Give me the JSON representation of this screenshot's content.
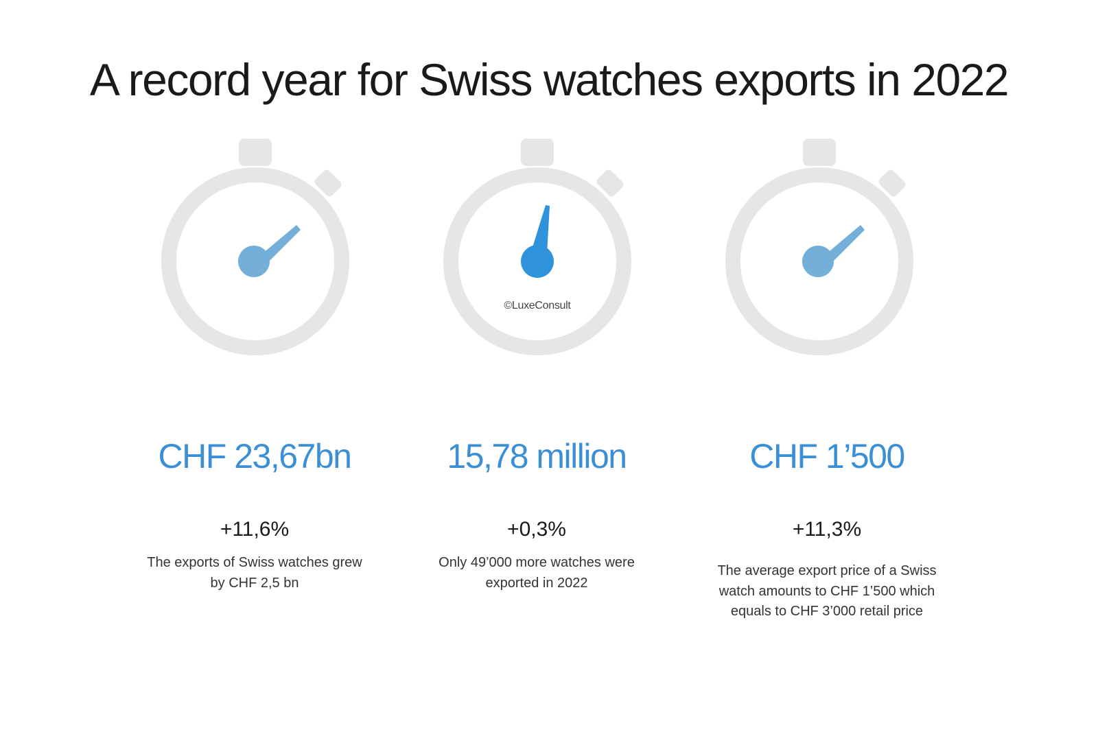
{
  "title": "A record year for Swiss watches exports in 2022",
  "credit": "©LuxeConsult",
  "colors": {
    "accent_light": "#74afd9",
    "accent_dark": "#2f93dc",
    "value_text": "#3b8fd6",
    "dial": "#e6e6e6"
  },
  "stats": [
    {
      "value": "CHF 23,67bn",
      "change": "+11,6%",
      "description": "The exports of Swiss watches grew by CHF 2,5 bn",
      "icon": "stopwatch-icon"
    },
    {
      "value": "15,78 million",
      "change": "+0,3%",
      "description": "Only 49’000 more watches were exported in 2022",
      "icon": "stopwatch-icon"
    },
    {
      "value": "CHF 1’500",
      "change": "+11,3%",
      "description": "The average export price of a Swiss watch amounts to CHF 1’500 which equals to CHF 3’000 retail price",
      "icon": "stopwatch-icon"
    }
  ]
}
